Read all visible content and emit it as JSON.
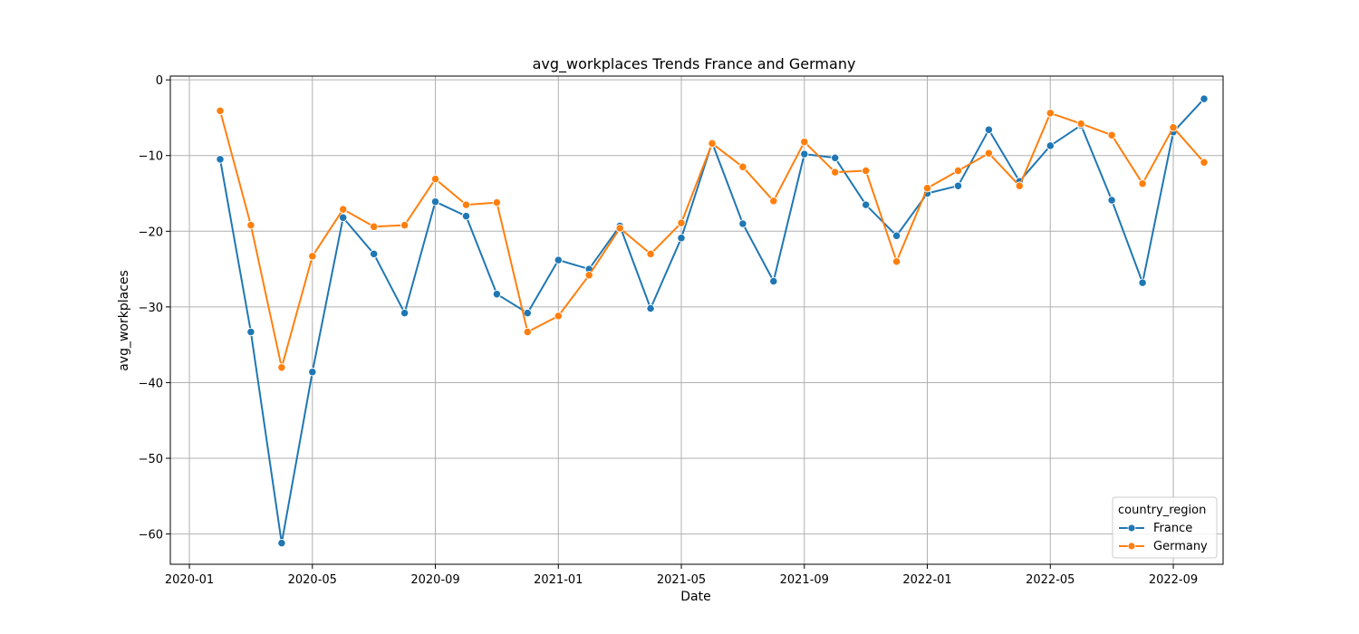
{
  "chart_data": {
    "type": "line",
    "title": "avg_workplaces Trends France and Germany",
    "xlabel": "Date",
    "ylabel": "avg_workplaces",
    "grid": true,
    "legend_title": "country_region",
    "legend_placement": "lower-right",
    "x_ticks": [
      "2020-01",
      "2020-05",
      "2020-09",
      "2021-01",
      "2021-05",
      "2021-09",
      "2022-01",
      "2022-05",
      "2022-09"
    ],
    "y_ticks": [
      0,
      -10,
      -20,
      -30,
      -40,
      -50,
      -60
    ],
    "ylim": [
      -64,
      0.5
    ],
    "xlim": [
      "2020-01",
      "2022-10"
    ],
    "x": [
      "2020-02",
      "2020-03",
      "2020-04",
      "2020-05",
      "2020-06",
      "2020-07",
      "2020-08",
      "2020-09",
      "2020-10",
      "2020-11",
      "2020-12",
      "2021-01",
      "2021-02",
      "2021-03",
      "2021-04",
      "2021-05",
      "2021-06",
      "2021-07",
      "2021-08",
      "2021-09",
      "2021-10",
      "2021-11",
      "2021-12",
      "2022-01",
      "2022-02",
      "2022-03",
      "2022-04",
      "2022-05",
      "2022-06",
      "2022-07",
      "2022-08",
      "2022-09",
      "2022-10"
    ],
    "series": [
      {
        "name": "France",
        "color": "#1f77b4",
        "values": [
          -10.5,
          -33.3,
          -61.2,
          -38.6,
          -18.2,
          -23.0,
          -30.8,
          -16.1,
          -18.0,
          -28.3,
          -30.8,
          -23.8,
          -25.0,
          -19.3,
          -30.2,
          -20.9,
          -8.3,
          -19.0,
          -26.6,
          -9.8,
          -10.3,
          -16.5,
          -20.6,
          -15.0,
          -14.0,
          -6.6,
          -13.4,
          -8.7,
          -6.0,
          -15.9,
          -26.8,
          -6.9,
          -2.5
        ]
      },
      {
        "name": "Germany",
        "color": "#ff7f0e",
        "values": [
          -4.1,
          -19.2,
          -38.0,
          -23.3,
          -17.1,
          -19.4,
          -19.2,
          -13.1,
          -16.5,
          -16.2,
          -33.3,
          -31.2,
          -25.8,
          -19.6,
          -23.0,
          -18.9,
          -8.4,
          -11.5,
          -16.0,
          -8.2,
          -12.2,
          -12.0,
          -24.0,
          -14.3,
          -12.0,
          -9.7,
          -14.0,
          -4.4,
          -5.8,
          -7.3,
          -13.7,
          -6.3,
          -10.9
        ]
      }
    ]
  }
}
